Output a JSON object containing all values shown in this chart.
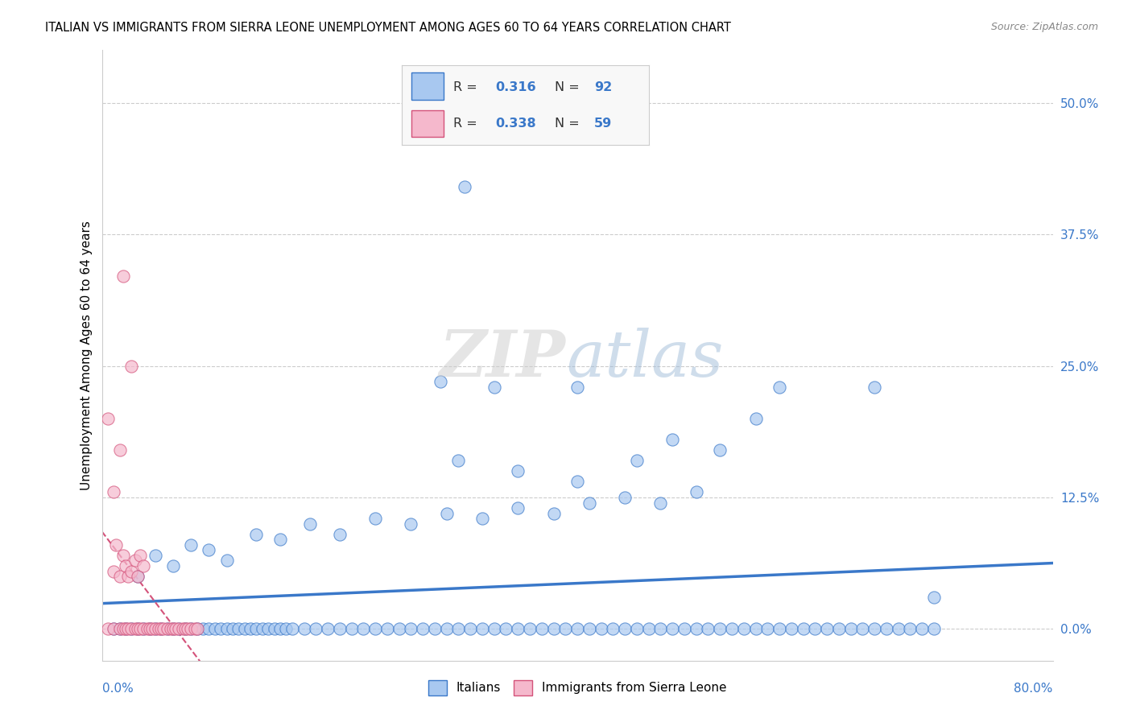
{
  "title": "ITALIAN VS IMMIGRANTS FROM SIERRA LEONE UNEMPLOYMENT AMONG AGES 60 TO 64 YEARS CORRELATION CHART",
  "source": "Source: ZipAtlas.com",
  "ylabel": "Unemployment Among Ages 60 to 64 years",
  "ytick_vals": [
    0.0,
    12.5,
    25.0,
    37.5,
    50.0
  ],
  "xlim": [
    0.0,
    80.0
  ],
  "ylim": [
    -3.0,
    55.0
  ],
  "italian_color": "#a8c8f0",
  "sierra_leone_color": "#f5b8cc",
  "trend_color_italian": "#3a78c9",
  "trend_color_sierra": "#d4527a",
  "background_color": "#ffffff",
  "watermark_zip": "ZIP",
  "watermark_atlas": "atlas",
  "italian_scatter": [
    [
      1.0,
      0.0
    ],
    [
      1.5,
      0.0
    ],
    [
      2.0,
      0.0
    ],
    [
      2.5,
      0.0
    ],
    [
      3.0,
      0.0
    ],
    [
      3.5,
      0.0
    ],
    [
      4.0,
      0.0
    ],
    [
      4.5,
      0.0
    ],
    [
      5.0,
      0.0
    ],
    [
      5.5,
      0.0
    ],
    [
      6.0,
      0.0
    ],
    [
      6.5,
      0.0
    ],
    [
      7.0,
      0.0
    ],
    [
      7.5,
      0.0
    ],
    [
      8.0,
      0.0
    ],
    [
      8.5,
      0.0
    ],
    [
      9.0,
      0.0
    ],
    [
      9.5,
      0.0
    ],
    [
      10.0,
      0.0
    ],
    [
      10.5,
      0.0
    ],
    [
      11.0,
      0.0
    ],
    [
      11.5,
      0.0
    ],
    [
      12.0,
      0.0
    ],
    [
      12.5,
      0.0
    ],
    [
      13.0,
      0.0
    ],
    [
      13.5,
      0.0
    ],
    [
      14.0,
      0.0
    ],
    [
      14.5,
      0.0
    ],
    [
      15.0,
      0.0
    ],
    [
      15.5,
      0.0
    ],
    [
      16.0,
      0.0
    ],
    [
      17.0,
      0.0
    ],
    [
      18.0,
      0.0
    ],
    [
      19.0,
      0.0
    ],
    [
      20.0,
      0.0
    ],
    [
      21.0,
      0.0
    ],
    [
      22.0,
      0.0
    ],
    [
      23.0,
      0.0
    ],
    [
      24.0,
      0.0
    ],
    [
      25.0,
      0.0
    ],
    [
      26.0,
      0.0
    ],
    [
      27.0,
      0.0
    ],
    [
      28.0,
      0.0
    ],
    [
      29.0,
      0.0
    ],
    [
      30.0,
      0.0
    ],
    [
      31.0,
      0.0
    ],
    [
      32.0,
      0.0
    ],
    [
      33.0,
      0.0
    ],
    [
      34.0,
      0.0
    ],
    [
      35.0,
      0.0
    ],
    [
      36.0,
      0.0
    ],
    [
      37.0,
      0.0
    ],
    [
      38.0,
      0.0
    ],
    [
      39.0,
      0.0
    ],
    [
      40.0,
      0.0
    ],
    [
      41.0,
      0.0
    ],
    [
      42.0,
      0.0
    ],
    [
      43.0,
      0.0
    ],
    [
      44.0,
      0.0
    ],
    [
      45.0,
      0.0
    ],
    [
      46.0,
      0.0
    ],
    [
      47.0,
      0.0
    ],
    [
      48.0,
      0.0
    ],
    [
      49.0,
      0.0
    ],
    [
      50.0,
      0.0
    ],
    [
      51.0,
      0.0
    ],
    [
      52.0,
      0.0
    ],
    [
      53.0,
      0.0
    ],
    [
      54.0,
      0.0
    ],
    [
      55.0,
      0.0
    ],
    [
      56.0,
      0.0
    ],
    [
      57.0,
      0.0
    ],
    [
      58.0,
      0.0
    ],
    [
      59.0,
      0.0
    ],
    [
      60.0,
      0.0
    ],
    [
      61.0,
      0.0
    ],
    [
      62.0,
      0.0
    ],
    [
      63.0,
      0.0
    ],
    [
      64.0,
      0.0
    ],
    [
      65.0,
      0.0
    ],
    [
      66.0,
      0.0
    ],
    [
      67.0,
      0.0
    ],
    [
      68.0,
      0.0
    ],
    [
      69.0,
      0.0
    ],
    [
      70.0,
      0.0
    ],
    [
      3.0,
      5.0
    ],
    [
      4.5,
      7.0
    ],
    [
      6.0,
      6.0
    ],
    [
      7.5,
      8.0
    ],
    [
      9.0,
      7.5
    ],
    [
      10.5,
      6.5
    ],
    [
      13.0,
      9.0
    ],
    [
      15.0,
      8.5
    ],
    [
      17.5,
      10.0
    ],
    [
      20.0,
      9.0
    ],
    [
      23.0,
      10.5
    ],
    [
      26.0,
      10.0
    ],
    [
      29.0,
      11.0
    ],
    [
      32.0,
      10.5
    ],
    [
      35.0,
      11.5
    ],
    [
      38.0,
      11.0
    ],
    [
      41.0,
      12.0
    ],
    [
      44.0,
      12.5
    ],
    [
      47.0,
      12.0
    ],
    [
      50.0,
      13.0
    ],
    [
      30.0,
      16.0
    ],
    [
      35.0,
      15.0
    ],
    [
      40.0,
      14.0
    ],
    [
      45.0,
      16.0
    ],
    [
      48.0,
      18.0
    ],
    [
      52.0,
      17.0
    ],
    [
      55.0,
      20.0
    ],
    [
      33.0,
      23.0
    ],
    [
      40.0,
      23.0
    ],
    [
      57.0,
      23.0
    ],
    [
      28.5,
      23.5
    ],
    [
      30.5,
      42.0
    ],
    [
      65.0,
      23.0
    ],
    [
      70.0,
      3.0
    ]
  ],
  "sierra_scatter": [
    [
      0.5,
      0.0
    ],
    [
      1.0,
      0.0
    ],
    [
      1.5,
      0.0
    ],
    [
      1.8,
      0.0
    ],
    [
      2.0,
      0.0
    ],
    [
      2.2,
      0.0
    ],
    [
      2.5,
      0.0
    ],
    [
      2.8,
      0.0
    ],
    [
      3.0,
      0.0
    ],
    [
      3.2,
      0.0
    ],
    [
      3.5,
      0.0
    ],
    [
      3.8,
      0.0
    ],
    [
      4.0,
      0.0
    ],
    [
      4.2,
      0.0
    ],
    [
      4.5,
      0.0
    ],
    [
      4.8,
      0.0
    ],
    [
      5.0,
      0.0
    ],
    [
      5.2,
      0.0
    ],
    [
      5.5,
      0.0
    ],
    [
      5.8,
      0.0
    ],
    [
      6.0,
      0.0
    ],
    [
      6.2,
      0.0
    ],
    [
      6.5,
      0.0
    ],
    [
      6.8,
      0.0
    ],
    [
      7.0,
      0.0
    ],
    [
      7.2,
      0.0
    ],
    [
      7.5,
      0.0
    ],
    [
      7.8,
      0.0
    ],
    [
      8.0,
      0.0
    ],
    [
      1.0,
      5.5
    ],
    [
      1.2,
      8.0
    ],
    [
      1.5,
      5.0
    ],
    [
      1.8,
      7.0
    ],
    [
      2.0,
      6.0
    ],
    [
      2.2,
      5.0
    ],
    [
      2.5,
      5.5
    ],
    [
      2.8,
      6.5
    ],
    [
      3.0,
      5.0
    ],
    [
      3.2,
      7.0
    ],
    [
      3.5,
      6.0
    ],
    [
      1.0,
      13.0
    ],
    [
      1.5,
      17.0
    ],
    [
      0.5,
      20.0
    ],
    [
      2.5,
      25.0
    ],
    [
      1.8,
      33.5
    ]
  ]
}
